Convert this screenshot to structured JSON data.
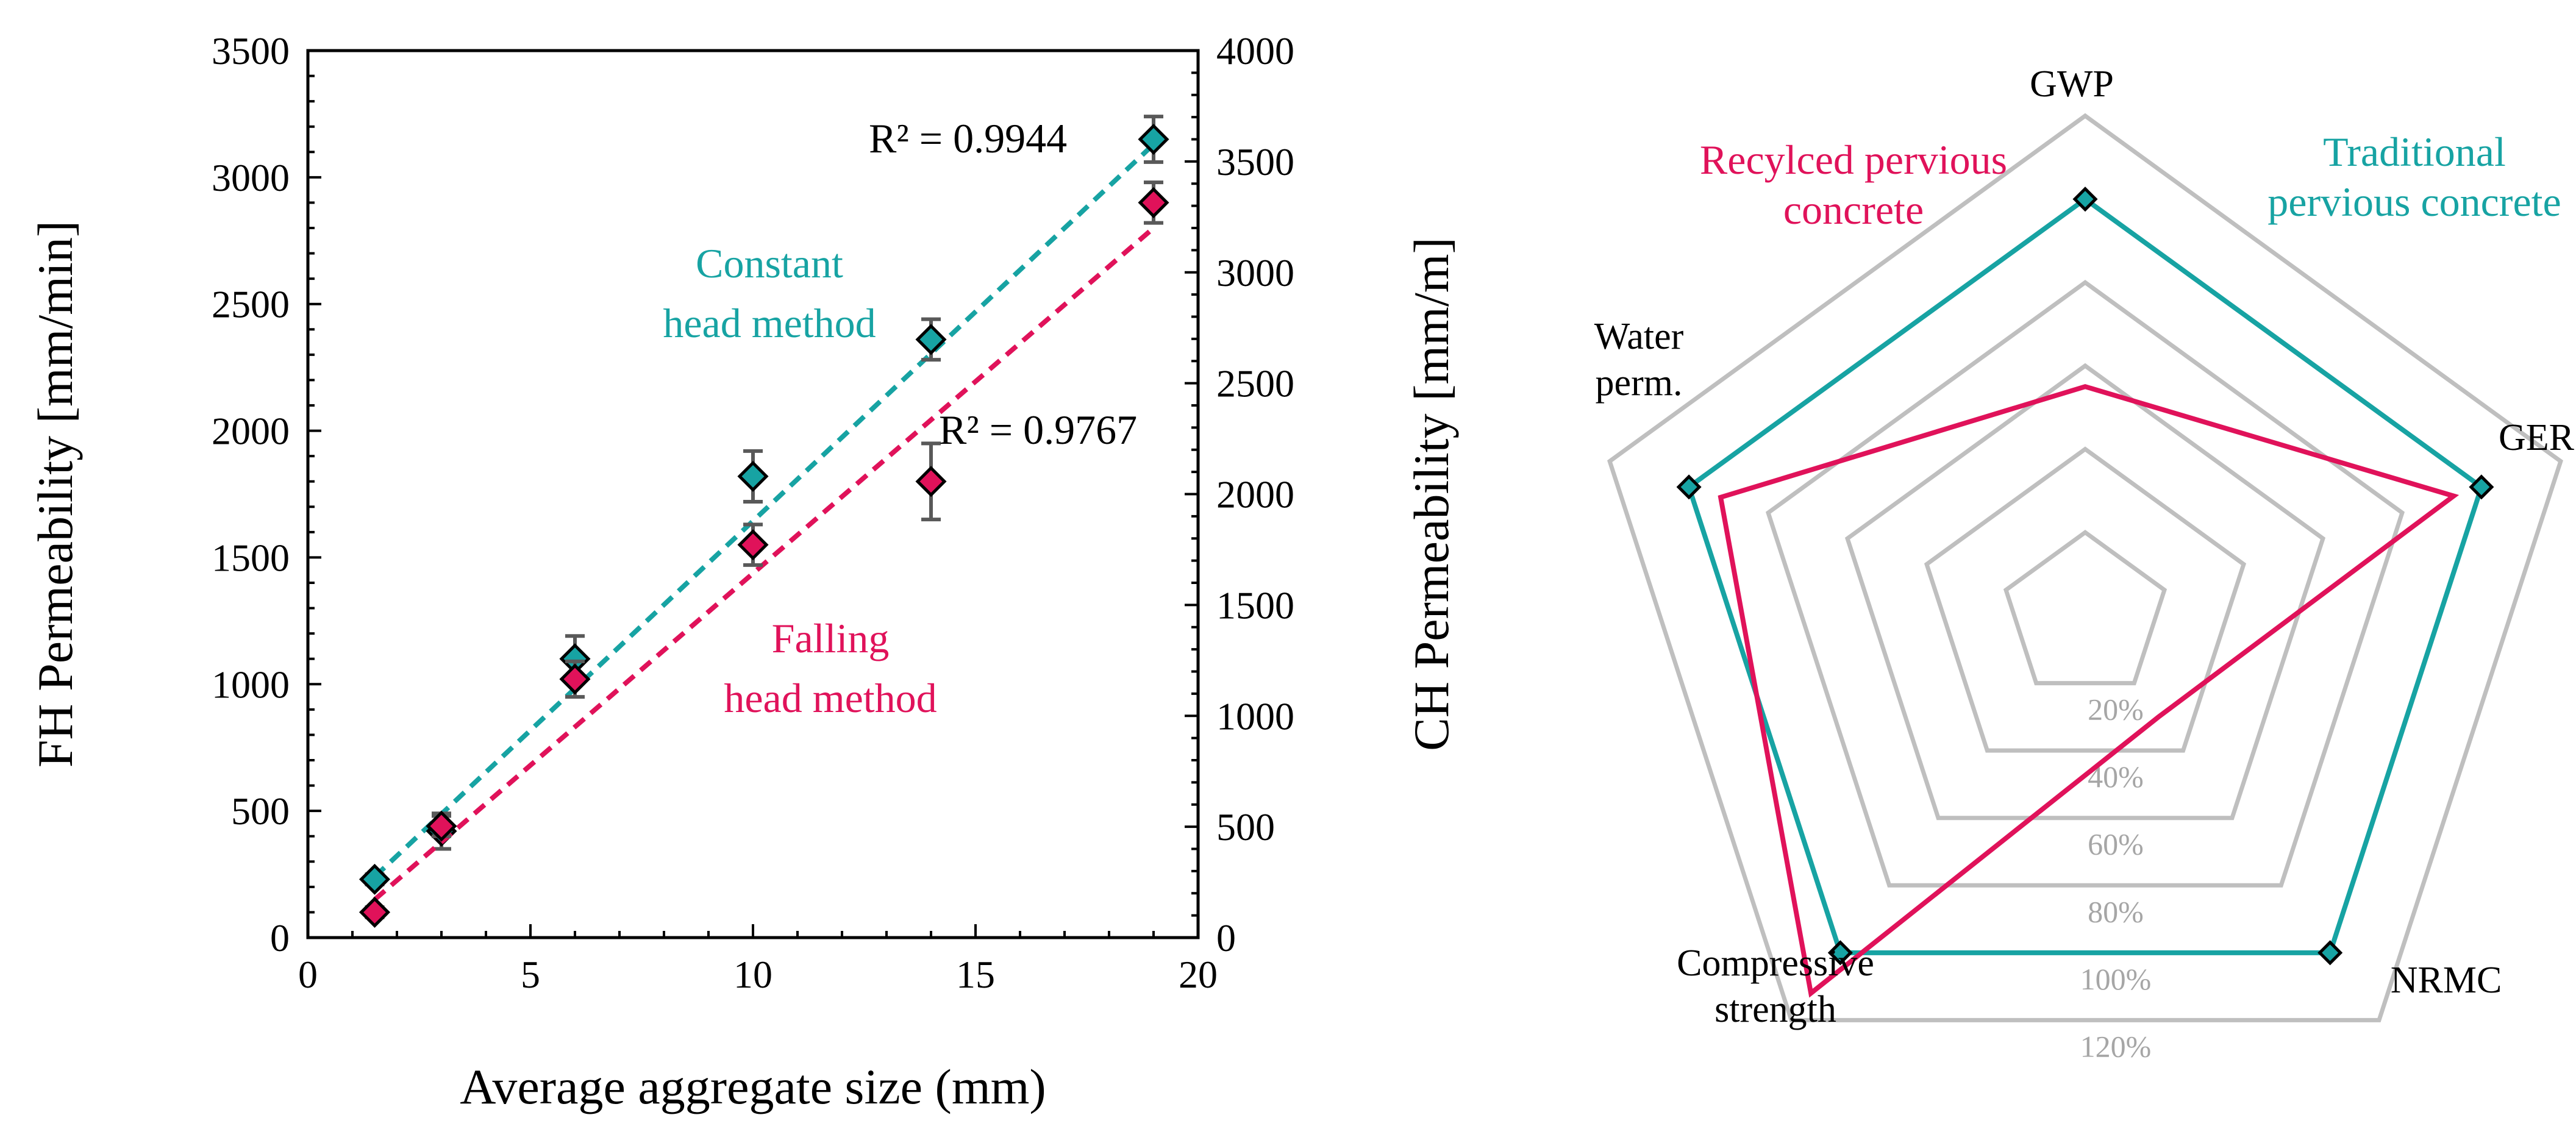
{
  "colors": {
    "constant": "#17a3a3",
    "falling": "#e0125a",
    "grid": "#bfbfbf",
    "ring_label": "#a6a6a6",
    "error_bar": "#595959"
  },
  "chart_data": [
    {
      "type": "scatter",
      "title": "",
      "xlabel": "Average aggregate size (mm)",
      "ylabel_left": "FH Permeability [mm/min]",
      "ylabel_right": "CH Permeability [mm/m]",
      "xlim": [
        0,
        20
      ],
      "ylim_left": [
        0,
        3500
      ],
      "ylim_right": [
        0,
        4000
      ],
      "x_ticks": [
        "0",
        "5",
        "10",
        "15",
        "20"
      ],
      "y_ticks_left": [
        "0",
        "500",
        "1000",
        "1500",
        "2000",
        "2500",
        "3000",
        "3500"
      ],
      "y_ticks_right": [
        "0",
        "500",
        "1000",
        "1500",
        "2000",
        "2500",
        "3000",
        "3500",
        "4000"
      ],
      "series": [
        {
          "name": "Constant head method",
          "label_lines": [
            "Constant",
            "head method"
          ],
          "color_key": "constant",
          "points": [
            {
              "x": 1.5,
              "y": 230,
              "err": 20
            },
            {
              "x": 3,
              "y": 420,
              "err": 70
            },
            {
              "x": 6,
              "y": 1100,
              "err": 90
            },
            {
              "x": 10,
              "y": 1820,
              "err": 100
            },
            {
              "x": 14,
              "y": 2360,
              "err": 80
            },
            {
              "x": 19,
              "y": 3150,
              "err": 90
            }
          ],
          "trendline": {
            "x0": 1.5,
            "y0": 240,
            "x1": 19,
            "y1": 3130
          },
          "r2": "R² = 0.9944"
        },
        {
          "name": "Falling head method",
          "label_lines": [
            "Falling",
            "head method"
          ],
          "color_key": "falling",
          "points": [
            {
              "x": 1.5,
              "y": 100,
              "err": 20
            },
            {
              "x": 3,
              "y": 440,
              "err": 40
            },
            {
              "x": 6,
              "y": 1020,
              "err": 70
            },
            {
              "x": 10,
              "y": 1550,
              "err": 80
            },
            {
              "x": 14,
              "y": 1800,
              "err": 150
            },
            {
              "x": 19,
              "y": 2900,
              "err": 80
            }
          ],
          "trendline": {
            "x0": 1.5,
            "y0": 150,
            "x1": 19,
            "y1": 2800
          },
          "r2": "R² = 0.9767"
        }
      ]
    },
    {
      "type": "radar",
      "axes": [
        {
          "key": "gwp",
          "lines": [
            "GWP"
          ]
        },
        {
          "key": "ger",
          "lines": [
            "GER"
          ]
        },
        {
          "key": "nrmc",
          "lines": [
            "NRMC"
          ]
        },
        {
          "key": "cs",
          "lines": [
            "Compressive",
            "strength"
          ]
        },
        {
          "key": "wp",
          "lines": [
            "Water",
            "perm."
          ]
        }
      ],
      "ring_max": 120,
      "rings": [
        20,
        40,
        60,
        80,
        100,
        120
      ],
      "ring_labels": [
        "20%",
        "40%",
        "60%",
        "80%",
        "100%",
        "120%"
      ],
      "series": [
        {
          "name": "Traditional pervious concrete",
          "label_lines": [
            "Traditional",
            "pervious concrete"
          ],
          "color_key": "constant",
          "values": [
            100,
            100,
            100,
            100,
            100
          ],
          "markers": true
        },
        {
          "name": "Recylced pervious concrete",
          "label_lines": [
            "Recylced pervious",
            "concrete"
          ],
          "color_key": "falling",
          "values": [
            55,
            93,
            30,
            112,
            92
          ],
          "markers": false
        }
      ]
    }
  ]
}
